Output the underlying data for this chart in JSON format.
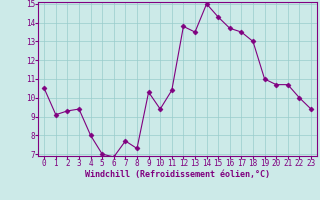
{
  "x": [
    0,
    1,
    2,
    3,
    4,
    5,
    6,
    7,
    8,
    9,
    10,
    11,
    12,
    13,
    14,
    15,
    16,
    17,
    18,
    19,
    20,
    21,
    22,
    23
  ],
  "y": [
    10.5,
    9.1,
    9.3,
    9.4,
    8.0,
    7.0,
    6.85,
    7.7,
    7.3,
    10.3,
    9.4,
    10.4,
    13.8,
    13.5,
    15.0,
    14.3,
    13.7,
    13.5,
    13.0,
    11.0,
    10.7,
    10.7,
    10.0,
    9.4
  ],
  "line_color": "#800080",
  "marker": "D",
  "marker_size": 2.5,
  "bg_color": "#cceae8",
  "grid_color": "#99cccc",
  "xlabel": "Windchill (Refroidissement éolien,°C)",
  "xlabel_color": "#800080",
  "tick_color": "#800080",
  "ylim": [
    7,
    15
  ],
  "xlim": [
    -0.5,
    23.5
  ],
  "yticks": [
    7,
    8,
    9,
    10,
    11,
    12,
    13,
    14,
    15
  ],
  "xticks": [
    0,
    1,
    2,
    3,
    4,
    5,
    6,
    7,
    8,
    9,
    10,
    11,
    12,
    13,
    14,
    15,
    16,
    17,
    18,
    19,
    20,
    21,
    22,
    23
  ],
  "tick_fontsize": 5.5,
  "xlabel_fontsize": 6.0
}
